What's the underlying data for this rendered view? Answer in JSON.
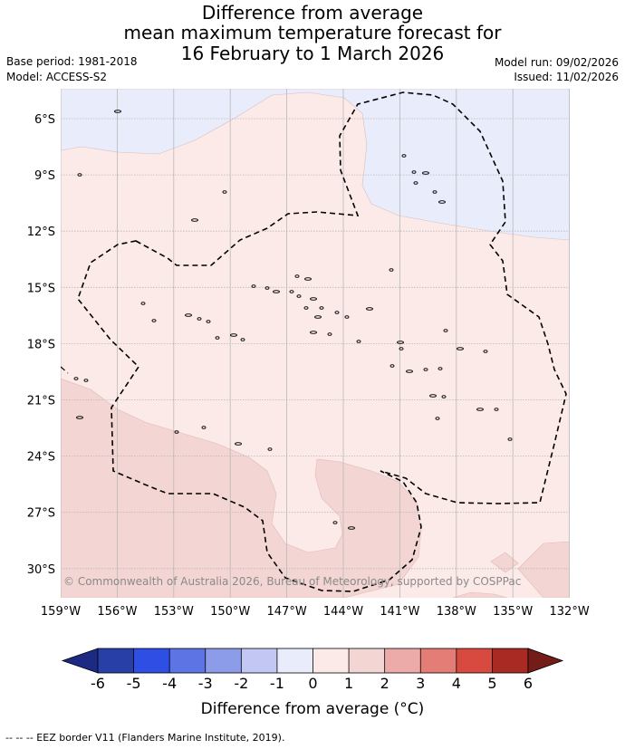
{
  "title": {
    "line1": "Difference from average",
    "line2": "mean maximum temperature forecast for",
    "line3": "16 February to 1 March 2026"
  },
  "meta": {
    "base_period": "Base period: 1981-2018",
    "model": "Model: ACCESS-S2",
    "model_run": "Model run: 09/02/2026",
    "issued": "Issued: 11/02/2026"
  },
  "map": {
    "lat_labels": [
      "6°S",
      "9°S",
      "12°S",
      "15°S",
      "18°S",
      "21°S",
      "24°S",
      "27°S",
      "30°S"
    ],
    "lon_labels": [
      "159°W",
      "156°W",
      "153°W",
      "150°W",
      "147°W",
      "144°W",
      "141°W",
      "138°W",
      "135°W",
      "132°W"
    ],
    "copyright": "© Commonwealth of Australia 2026, Bureau of Meteorology, supported by COSPPac",
    "colors": {
      "below_0_1": "#e9ecfb",
      "above_0_1": "#fbeae8",
      "above_1_2": "#f3d5d3",
      "gridline": "#b8b8b8",
      "eez_line": "#000000"
    }
  },
  "colorbar": {
    "ticks": [
      "-6",
      "-5",
      "-4",
      "-3",
      "-2",
      "-1",
      "0",
      "1",
      "2",
      "3",
      "4",
      "5",
      "6"
    ],
    "colors": [
      "#1c2a84",
      "#283fa8",
      "#2f4ee3",
      "#5d74e4",
      "#8d9ce9",
      "#c2c8f3",
      "#e9ecfb",
      "#fbeae8",
      "#f3d5d3",
      "#ecaaa8",
      "#e47d75",
      "#d84a40",
      "#a82a22",
      "#741d18"
    ],
    "label": "Difference from average (°C)"
  },
  "footer": "-- -- -- EEZ border V11 (Flanders Marine Institute, 2019)."
}
